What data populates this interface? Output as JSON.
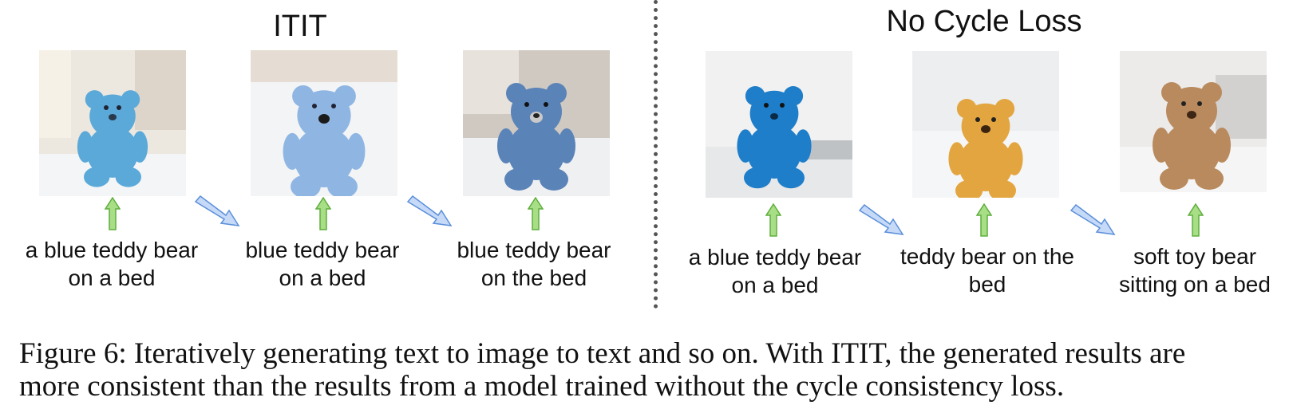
{
  "panels": {
    "left_title": "ITIT",
    "right_title": "No Cycle Loss"
  },
  "left_captions": [
    {
      "line1": "a blue teddy bear",
      "line2": "on a bed"
    },
    {
      "line1": "blue teddy bear",
      "line2": "on a bed"
    },
    {
      "line1": "blue teddy bear",
      "line2": "on the bed"
    }
  ],
  "right_captions": [
    {
      "line1": "a blue teddy bear",
      "line2": "on a bed"
    },
    {
      "line1": "teddy bear on the",
      "line2": "bed"
    },
    {
      "line1": "soft toy bear",
      "line2": "sitting on a bed"
    }
  ],
  "figure_caption": {
    "line1": "Figure 6: Iteratively generating text to image to text and so on. With ITIT, the generated results are",
    "line2": "more consistent than the results from a model trained without the cycle consistency loss."
  },
  "colors": {
    "up_arrow": "#8fcf6e",
    "diag_arrow": "#a9c6f5"
  }
}
